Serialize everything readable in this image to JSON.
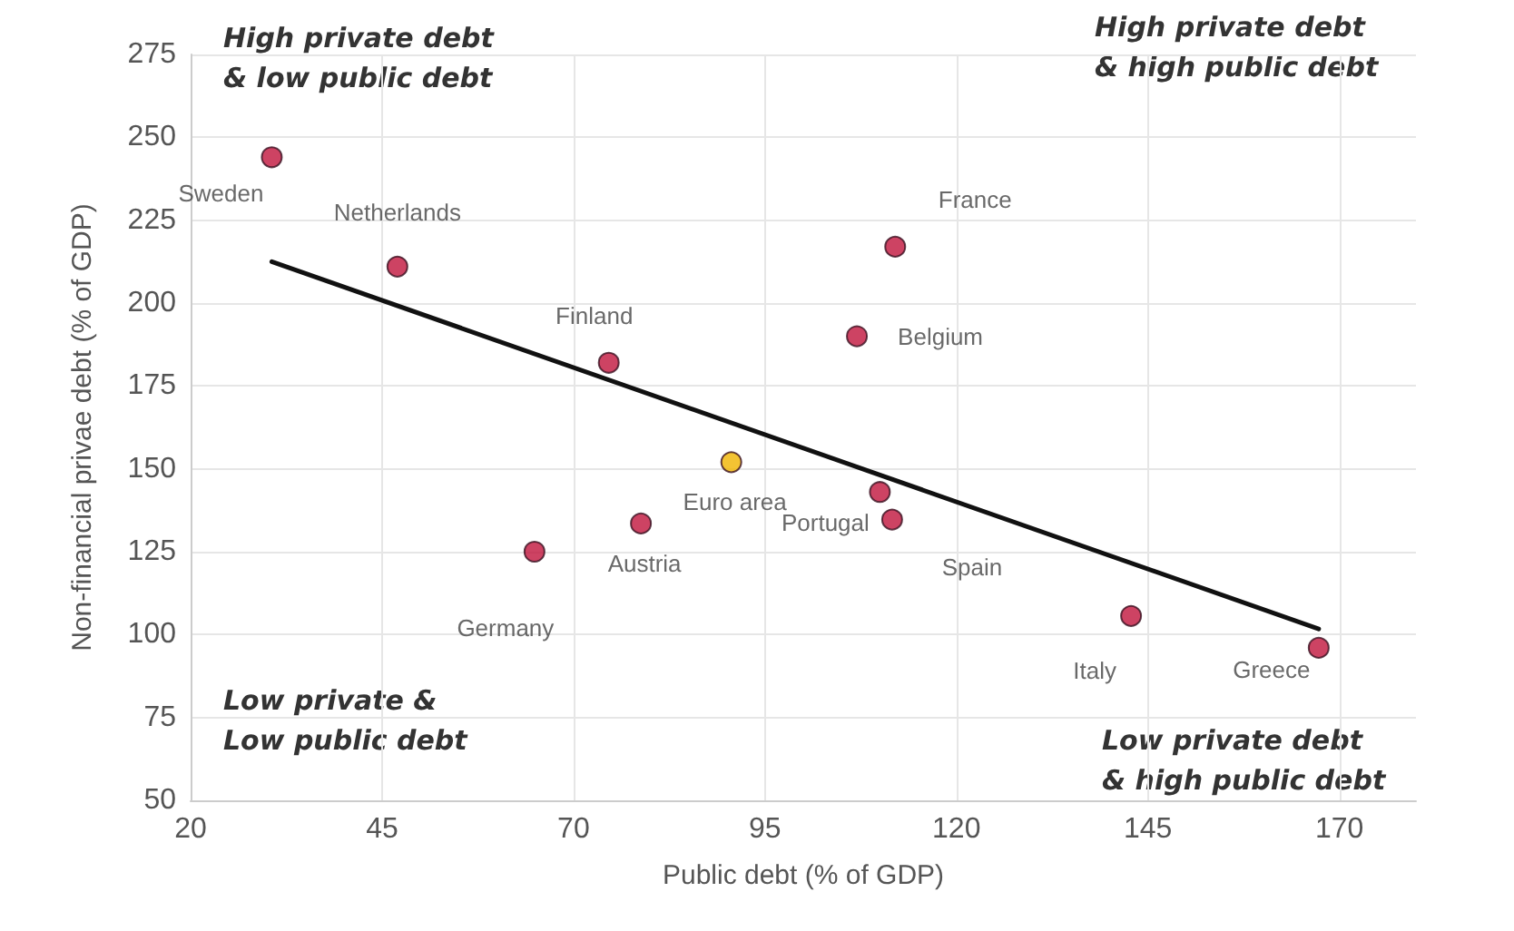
{
  "chart_data": {
    "type": "scatter",
    "xlabel": "Public debt (% of GDP)",
    "ylabel": "Non-financial privae debt (% of GDP)",
    "annotations": [
      "High private debt\n& low public debt",
      "High private debt\n& high public debt",
      "Low private &\nLow public debt",
      "Low private debt\n& high public debt"
    ],
    "series": [
      {
        "name": "Sweden",
        "color": "#c0143c",
        "x": [
          30.6
        ],
        "values": [
          244
        ]
      },
      {
        "name": "Netherlands",
        "color": "#c0143c",
        "x": [
          47
        ],
        "values": [
          211
        ]
      },
      {
        "name": "Finland",
        "color": "#c0143c",
        "x": [
          74.6
        ],
        "values": [
          182
        ]
      },
      {
        "name": "France",
        "color": "#c0143c",
        "x": [
          112
        ],
        "values": [
          217
        ]
      },
      {
        "name": "Belgium",
        "color": "#c0143c",
        "x": [
          107
        ],
        "values": [
          190
        ]
      },
      {
        "name": "Euro area",
        "color": "#f0b400",
        "x": [
          90.6
        ],
        "values": [
          152
        ]
      },
      {
        "name": "Austria",
        "color": "#c0143c",
        "x": [
          78.8
        ],
        "values": [
          133.5
        ]
      },
      {
        "name": "Germany",
        "color": "#c0143c",
        "x": [
          64.9
        ],
        "values": [
          125
        ]
      },
      {
        "name": "Portugal",
        "color": "#c0143c",
        "x": [
          110
        ],
        "values": [
          143
        ]
      },
      {
        "name": "Spain",
        "color": "#c0143c",
        "x": [
          111.6
        ],
        "values": [
          134.7
        ]
      },
      {
        "name": "Italy",
        "color": "#c0143c",
        "x": [
          142.8
        ],
        "values": [
          105.6
        ]
      },
      {
        "name": "Greece",
        "color": "#c0143c",
        "x": [
          167.3
        ],
        "values": [
          96
        ]
      },
      {
        "type": "line",
        "color": "#111111",
        "x": [
          30.6,
          167.3
        ],
        "values": [
          212.5,
          101.7
        ],
        "marker": "none"
      }
    ],
    "xlim": [
      20,
      180
    ],
    "xticks": [
      20,
      45,
      70,
      95,
      120,
      145,
      170
    ],
    "ylim": [
      50,
      275
    ],
    "yticks": [
      50,
      75,
      100,
      125,
      150,
      175,
      200,
      225,
      250,
      275
    ],
    "grid": true,
    "legend": false,
    "marker": "circle"
  }
}
